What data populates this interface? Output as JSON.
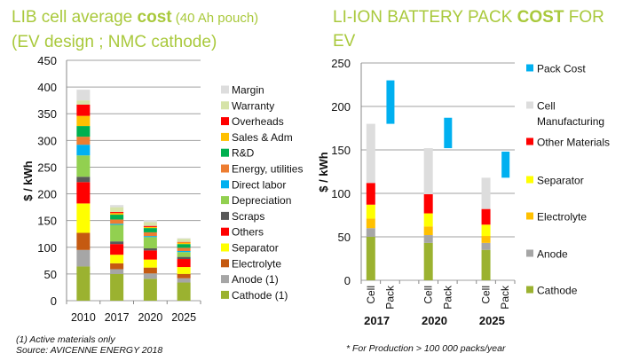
{
  "colors": {
    "title": "#a9c93c"
  },
  "left_title": {
    "line1_a": "LIB cell average ",
    "line1_b": "cost",
    "line1_c": " (40 Ah pouch)",
    "line2": "(EV design ; NMC cathode)"
  },
  "right_title": {
    "line1_a": "LI-ION BATTERY PACK ",
    "line1_b": "COST",
    "line1_c": " FOR",
    "line2": "EV"
  },
  "footnotes": {
    "left1": "(1) Active materials only",
    "left2": "Source: AVICENNE ENERGY 2018",
    "right": "* For  Production > 100 000 packs/year"
  },
  "chart_data": [
    {
      "type": "bar",
      "stacked": true,
      "title": "",
      "xlabel": "",
      "ylabel": "$ / kWh",
      "ylim": [
        0,
        450
      ],
      "yticks": [
        "0",
        "50",
        "100",
        "150",
        "200",
        "250",
        "300",
        "350",
        "400",
        "450"
      ],
      "grid": true,
      "legend": "right",
      "categories": [
        "2010",
        "2017",
        "2020",
        "2025"
      ],
      "series": [
        {
          "name": "Cathode (1)",
          "color": "#9bb230",
          "values": [
            64,
            50,
            41,
            34
          ]
        },
        {
          "name": "Anode (1)",
          "color": "#a6a6a6",
          "values": [
            31,
            9,
            10,
            8
          ]
        },
        {
          "name": "Electrolyte",
          "color": "#c55a11",
          "values": [
            32,
            11,
            11,
            8
          ]
        },
        {
          "name": "Separator",
          "color": "#ffff00",
          "values": [
            55,
            16,
            15,
            13
          ]
        },
        {
          "name": "Others",
          "color": "#ff0000",
          "values": [
            40,
            20,
            17,
            15
          ]
        },
        {
          "name": "Scraps",
          "color": "#595959",
          "values": [
            10,
            5,
            4,
            4
          ]
        },
        {
          "name": "Depreciation",
          "color": "#92d050",
          "values": [
            40,
            31,
            21,
            9
          ]
        },
        {
          "name": "Direct labor",
          "color": "#00b0f0",
          "values": [
            20,
            2,
            2,
            2
          ]
        },
        {
          "name": "Energy, utilities",
          "color": "#ed7d31",
          "values": [
            15,
            8,
            7,
            6
          ]
        },
        {
          "name": "R&D",
          "color": "#00b050",
          "values": [
            20,
            9,
            8,
            7
          ]
        },
        {
          "name": "Sales & Adm",
          "color": "#ffc000",
          "values": [
            19,
            3,
            2,
            3
          ]
        },
        {
          "name": "Overheads",
          "color": "#ff0000",
          "values": [
            21,
            2,
            2,
            1
          ]
        },
        {
          "name": "Warranty",
          "color": "#d6e3a8",
          "values": [
            8,
            9,
            7,
            6
          ]
        },
        {
          "name": "Margin",
          "color": "#dddddd",
          "values": [
            20,
            4,
            4,
            1
          ]
        }
      ]
    },
    {
      "type": "bar",
      "stacked": true,
      "title": "",
      "xlabel": "",
      "ylabel": "$ / kWh",
      "ylim": [
        0,
        250
      ],
      "yticks": [
        "0",
        "50",
        "100",
        "150",
        "200",
        "250"
      ],
      "grid": true,
      "legend": "right",
      "groups": [
        "2017",
        "2020",
        "2025"
      ],
      "subcategories": [
        "Cell",
        "Pack"
      ],
      "series": [
        {
          "name": "Cathode",
          "color": "#9bb230",
          "values": [
            50,
            43,
            35
          ]
        },
        {
          "name": "Anode",
          "color": "#a6a6a6",
          "values": [
            10,
            9,
            8
          ]
        },
        {
          "name": "Electrolyte",
          "color": "#ffc000",
          "values": [
            11,
            10,
            8
          ]
        },
        {
          "name": "Separator",
          "color": "#ffff00",
          "values": [
            16,
            15,
            13
          ]
        },
        {
          "name": "Other Materials",
          "color": "#ff0000",
          "values": [
            25,
            22,
            18
          ]
        },
        {
          "name": "Cell Manufacturing",
          "color": "#dddddd",
          "values": [
            68,
            53,
            36
          ]
        }
      ],
      "pack_cost": {
        "name": "Pack Cost",
        "color": "#00b0f0",
        "ranges": [
          [
            180,
            230
          ],
          [
            152,
            187
          ],
          [
            118,
            148
          ]
        ]
      },
      "legend_order": [
        "Pack Cost",
        "Cell Manufacturing",
        "Other Materials",
        "Separator",
        "Electrolyte",
        "Anode",
        "Cathode"
      ]
    }
  ]
}
